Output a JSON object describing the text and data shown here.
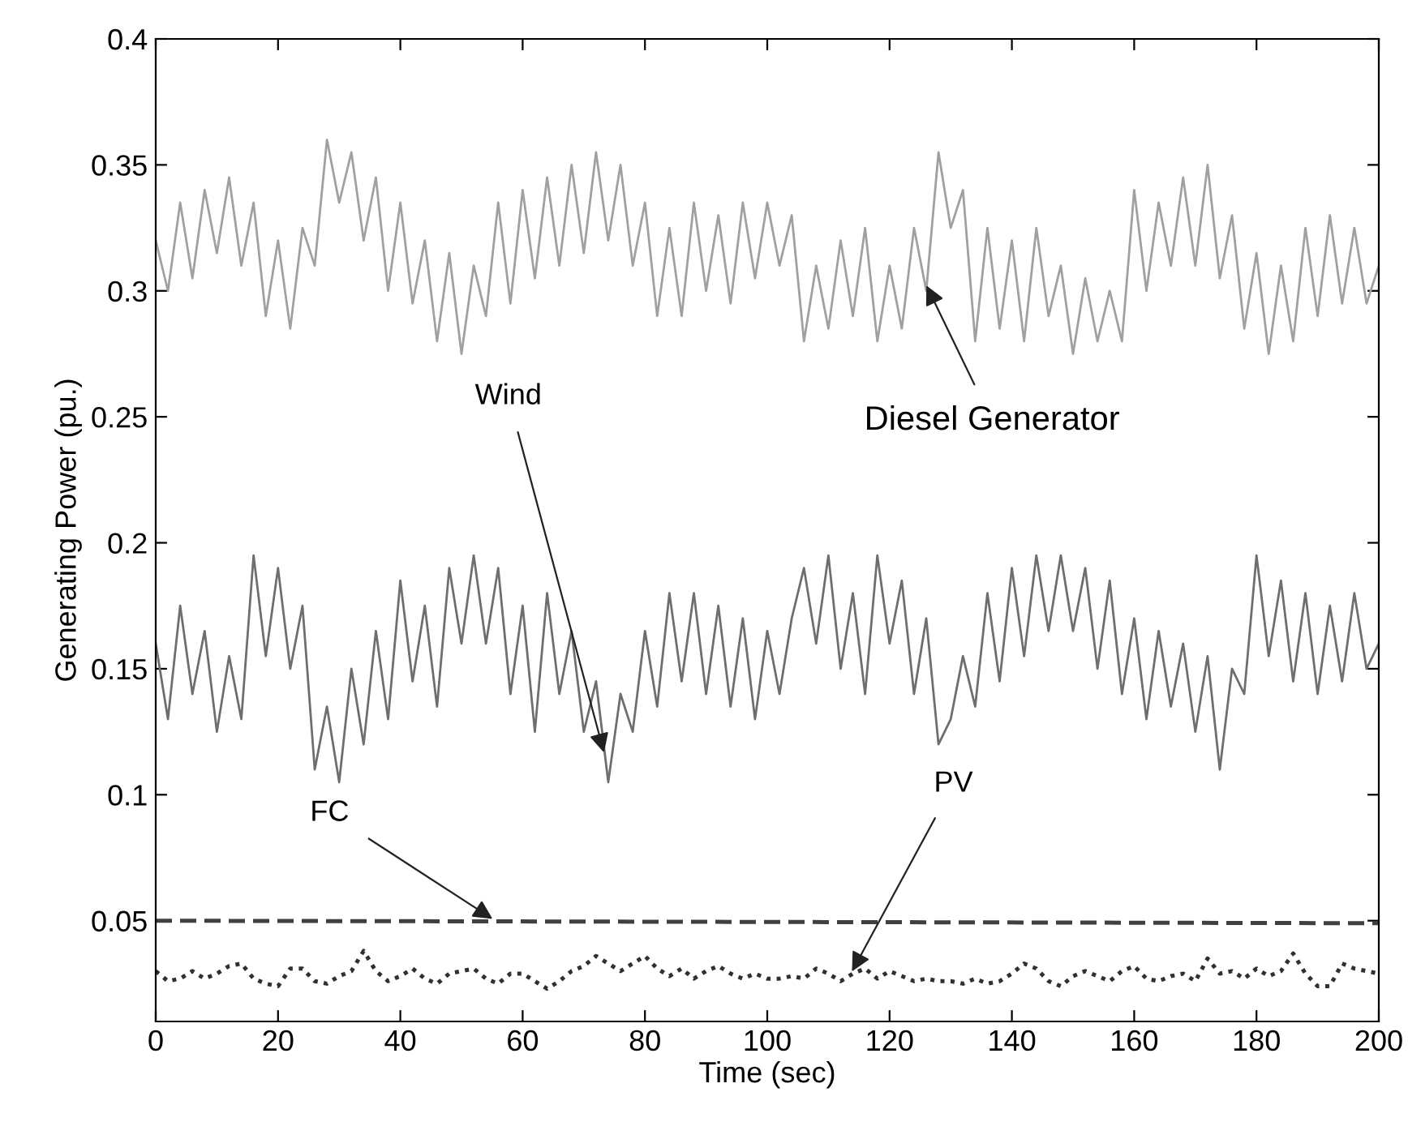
{
  "chart_data": {
    "type": "line",
    "xlabel": "Time (sec)",
    "ylabel": "Generating Power (pu.)",
    "xlim": [
      0,
      200
    ],
    "xticks": [
      0,
      20,
      40,
      60,
      80,
      100,
      120,
      140,
      160,
      180,
      200
    ],
    "ylim": [
      0.01,
      0.4
    ],
    "yticks": [
      0.05,
      0.1,
      0.15,
      0.2,
      0.25,
      0.3,
      0.35,
      0.4
    ],
    "grid": false,
    "legend": false,
    "marker": "none",
    "x": [
      0,
      2,
      4,
      6,
      8,
      10,
      12,
      14,
      16,
      18,
      20,
      22,
      24,
      26,
      28,
      30,
      32,
      34,
      36,
      38,
      40,
      42,
      44,
      46,
      48,
      50,
      52,
      54,
      56,
      58,
      60,
      62,
      64,
      66,
      68,
      70,
      72,
      74,
      76,
      78,
      80,
      82,
      84,
      86,
      88,
      90,
      92,
      94,
      96,
      98,
      100,
      102,
      104,
      106,
      108,
      110,
      112,
      114,
      116,
      118,
      120,
      122,
      124,
      126,
      128,
      130,
      132,
      134,
      136,
      138,
      140,
      142,
      144,
      146,
      148,
      150,
      152,
      154,
      156,
      158,
      160,
      162,
      164,
      166,
      168,
      170,
      172,
      174,
      176,
      178,
      180,
      182,
      184,
      186,
      188,
      190,
      192,
      194,
      196,
      198,
      200
    ],
    "series": [
      {
        "name": "Diesel Generator",
        "color": "#a0a0a0",
        "line_style": "solid",
        "values": [
          0.32,
          0.3,
          0.335,
          0.305,
          0.34,
          0.315,
          0.345,
          0.31,
          0.335,
          0.29,
          0.32,
          0.285,
          0.325,
          0.31,
          0.36,
          0.335,
          0.355,
          0.32,
          0.345,
          0.3,
          0.335,
          0.295,
          0.32,
          0.28,
          0.315,
          0.275,
          0.31,
          0.29,
          0.335,
          0.295,
          0.34,
          0.305,
          0.345,
          0.31,
          0.35,
          0.315,
          0.355,
          0.32,
          0.35,
          0.31,
          0.335,
          0.29,
          0.325,
          0.29,
          0.335,
          0.3,
          0.33,
          0.295,
          0.335,
          0.305,
          0.335,
          0.31,
          0.33,
          0.28,
          0.31,
          0.285,
          0.32,
          0.29,
          0.325,
          0.28,
          0.31,
          0.285,
          0.325,
          0.3,
          0.355,
          0.325,
          0.34,
          0.28,
          0.325,
          0.285,
          0.32,
          0.28,
          0.325,
          0.29,
          0.31,
          0.275,
          0.305,
          0.28,
          0.3,
          0.28,
          0.34,
          0.3,
          0.335,
          0.31,
          0.345,
          0.31,
          0.35,
          0.305,
          0.33,
          0.285,
          0.315,
          0.275,
          0.31,
          0.28,
          0.325,
          0.29,
          0.33,
          0.295,
          0.325,
          0.295,
          0.31
        ]
      },
      {
        "name": "Wind",
        "color": "#6e6e6e",
        "line_style": "solid",
        "values": [
          0.16,
          0.13,
          0.175,
          0.14,
          0.165,
          0.125,
          0.155,
          0.13,
          0.195,
          0.155,
          0.19,
          0.15,
          0.175,
          0.11,
          0.135,
          0.105,
          0.15,
          0.12,
          0.165,
          0.13,
          0.185,
          0.145,
          0.175,
          0.135,
          0.19,
          0.16,
          0.195,
          0.16,
          0.19,
          0.14,
          0.175,
          0.125,
          0.18,
          0.14,
          0.165,
          0.125,
          0.145,
          0.105,
          0.14,
          0.125,
          0.165,
          0.135,
          0.18,
          0.145,
          0.18,
          0.14,
          0.175,
          0.135,
          0.17,
          0.13,
          0.165,
          0.14,
          0.17,
          0.19,
          0.16,
          0.195,
          0.15,
          0.18,
          0.14,
          0.195,
          0.16,
          0.185,
          0.14,
          0.17,
          0.12,
          0.13,
          0.155,
          0.135,
          0.18,
          0.145,
          0.19,
          0.155,
          0.195,
          0.165,
          0.195,
          0.165,
          0.19,
          0.15,
          0.185,
          0.14,
          0.17,
          0.13,
          0.165,
          0.135,
          0.16,
          0.125,
          0.155,
          0.11,
          0.15,
          0.14,
          0.195,
          0.155,
          0.185,
          0.145,
          0.18,
          0.14,
          0.175,
          0.145,
          0.18,
          0.15,
          0.16
        ]
      },
      {
        "name": "FC",
        "color": "#404040",
        "line_style": "dashed",
        "x": [
          0,
          100,
          200
        ],
        "values": [
          0.05,
          0.0495,
          0.049
        ]
      },
      {
        "name": "PV",
        "color": "#303030",
        "line_style": "dotted",
        "values": [
          0.03,
          0.026,
          0.027,
          0.03,
          0.027,
          0.029,
          0.032,
          0.033,
          0.027,
          0.025,
          0.024,
          0.031,
          0.031,
          0.026,
          0.025,
          0.028,
          0.03,
          0.038,
          0.03,
          0.026,
          0.028,
          0.031,
          0.027,
          0.025,
          0.029,
          0.03,
          0.031,
          0.027,
          0.025,
          0.029,
          0.029,
          0.026,
          0.023,
          0.026,
          0.03,
          0.032,
          0.036,
          0.033,
          0.03,
          0.033,
          0.036,
          0.031,
          0.028,
          0.031,
          0.027,
          0.03,
          0.032,
          0.029,
          0.027,
          0.029,
          0.027,
          0.027,
          0.028,
          0.027,
          0.031,
          0.029,
          0.026,
          0.029,
          0.031,
          0.027,
          0.03,
          0.028,
          0.026,
          0.027,
          0.026,
          0.026,
          0.025,
          0.027,
          0.025,
          0.026,
          0.029,
          0.033,
          0.031,
          0.026,
          0.024,
          0.028,
          0.03,
          0.028,
          0.026,
          0.03,
          0.032,
          0.027,
          0.026,
          0.028,
          0.029,
          0.026,
          0.035,
          0.029,
          0.03,
          0.027,
          0.031,
          0.028,
          0.03,
          0.037,
          0.029,
          0.024,
          0.024,
          0.033,
          0.031,
          0.03,
          0.029
        ]
      }
    ]
  }
}
